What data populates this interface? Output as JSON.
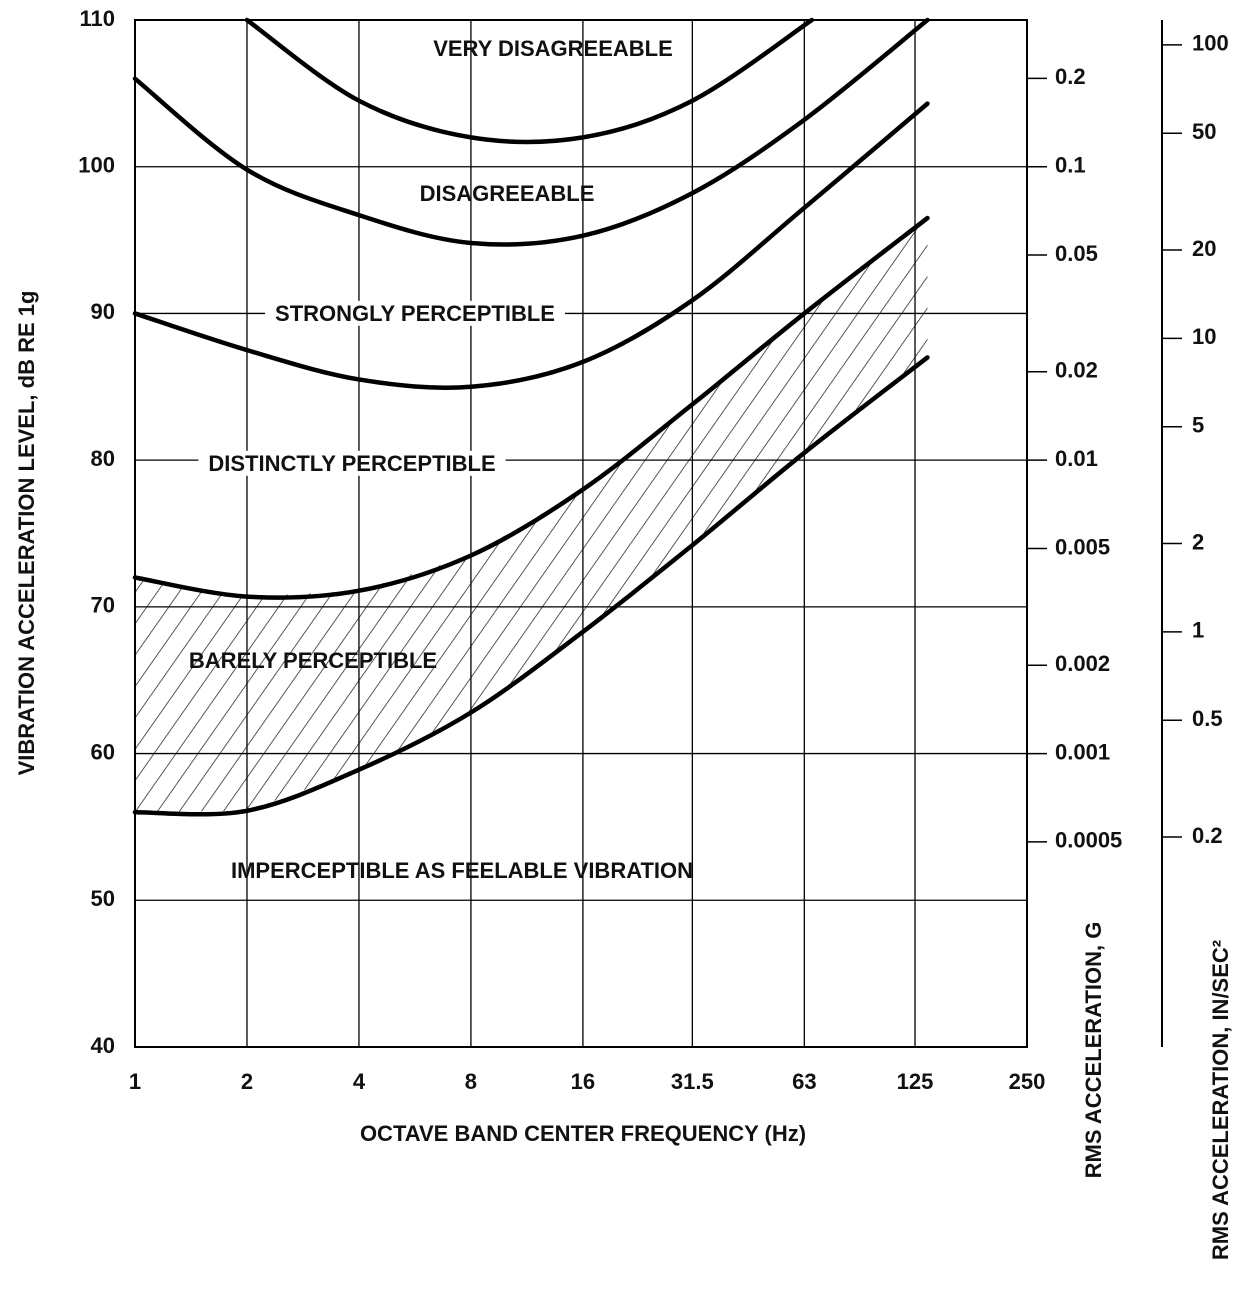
{
  "chart_data": {
    "type": "line",
    "xlabel": "OCTAVE BAND CENTER FREQUENCY (Hz)",
    "ylabel": "VIBRATION ACCELERATION LEVEL, dB RE 1g",
    "y2label": "RMS ACCELERATION, G",
    "y3label": "RMS ACCELERATION, IN/SEC²",
    "xscale": "log",
    "xlim": [
      1,
      250
    ],
    "xticks": [
      1,
      2,
      4,
      8,
      16,
      31.5,
      63,
      125,
      250
    ],
    "ylim": [
      40,
      110
    ],
    "yticks": [
      40,
      50,
      60,
      70,
      80,
      90,
      100,
      110
    ],
    "y2scale": "log",
    "y2lim": [
      0.0001,
      0.3162
    ],
    "y2ticks": [
      0.2,
      0.1,
      0.05,
      0.02,
      0.01,
      0.005,
      0.002,
      0.001,
      0.0005
    ],
    "y3scale": "log",
    "y3lim": [
      0.0385,
      121.6
    ],
    "y3ticks": [
      100,
      50,
      20,
      10,
      5,
      2,
      1,
      0.5,
      0.2
    ],
    "grid": true,
    "hatch_between": [
      3,
      4
    ],
    "annotations": [
      "VERY DISAGREEABLE",
      "DISAGREEABLE",
      "STRONGLY PERCEPTIBLE",
      "DISTINCTLY PERCEPTIBLE",
      "BARELY PERCEPTIBLE",
      "IMPERCEPTIBLE AS FEELABLE VIBRATION"
    ],
    "series": [
      {
        "color": "#000000",
        "x": [
          2,
          4,
          8,
          16,
          31.5,
          66
        ],
        "values": [
          110,
          104.5,
          102,
          102,
          104.5,
          110
        ]
      },
      {
        "color": "#000000",
        "x": [
          1,
          2,
          4,
          8,
          16,
          31.5,
          63,
          135
        ],
        "values": [
          106,
          99.8,
          96.7,
          94.8,
          95.3,
          98.2,
          103.2,
          110
        ]
      },
      {
        "color": "#000000",
        "x": [
          1,
          2,
          4,
          8,
          16,
          31.5,
          63,
          135
        ],
        "values": [
          90,
          87.5,
          85.5,
          85,
          86.7,
          90.9,
          97.2,
          104.3
        ]
      },
      {
        "color": "#000000",
        "x": [
          1,
          2,
          4,
          8,
          16,
          31.5,
          63,
          135
        ],
        "values": [
          72,
          70.7,
          71.1,
          73.5,
          78,
          83.8,
          90,
          96.5
        ]
      },
      {
        "color": "#000000",
        "x": [
          1,
          2,
          4,
          8,
          16,
          31.5,
          63,
          135
        ],
        "values": [
          56,
          56.1,
          58.9,
          62.8,
          68.3,
          74.2,
          80.5,
          87
        ]
      }
    ]
  }
}
